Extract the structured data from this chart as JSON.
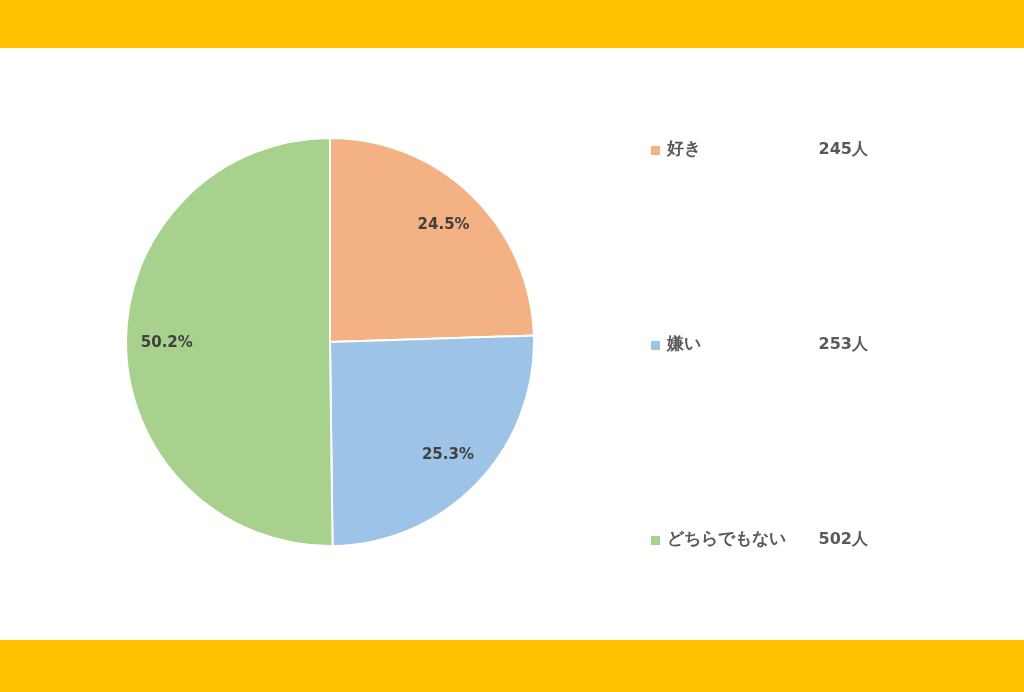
{
  "chart_data": {
    "type": "pie",
    "categories": [
      "好き",
      "嫌い",
      "どちらでもない"
    ],
    "values": [
      24.5,
      25.3,
      50.2
    ],
    "colors": [
      "#f4b183",
      "#9dc3e6",
      "#a9d18e"
    ],
    "value_labels": [
      "24.5%",
      "25.3%",
      "50.2%"
    ],
    "legend": "right",
    "annotations": [
      "245人",
      "253人",
      "502人"
    ]
  }
}
